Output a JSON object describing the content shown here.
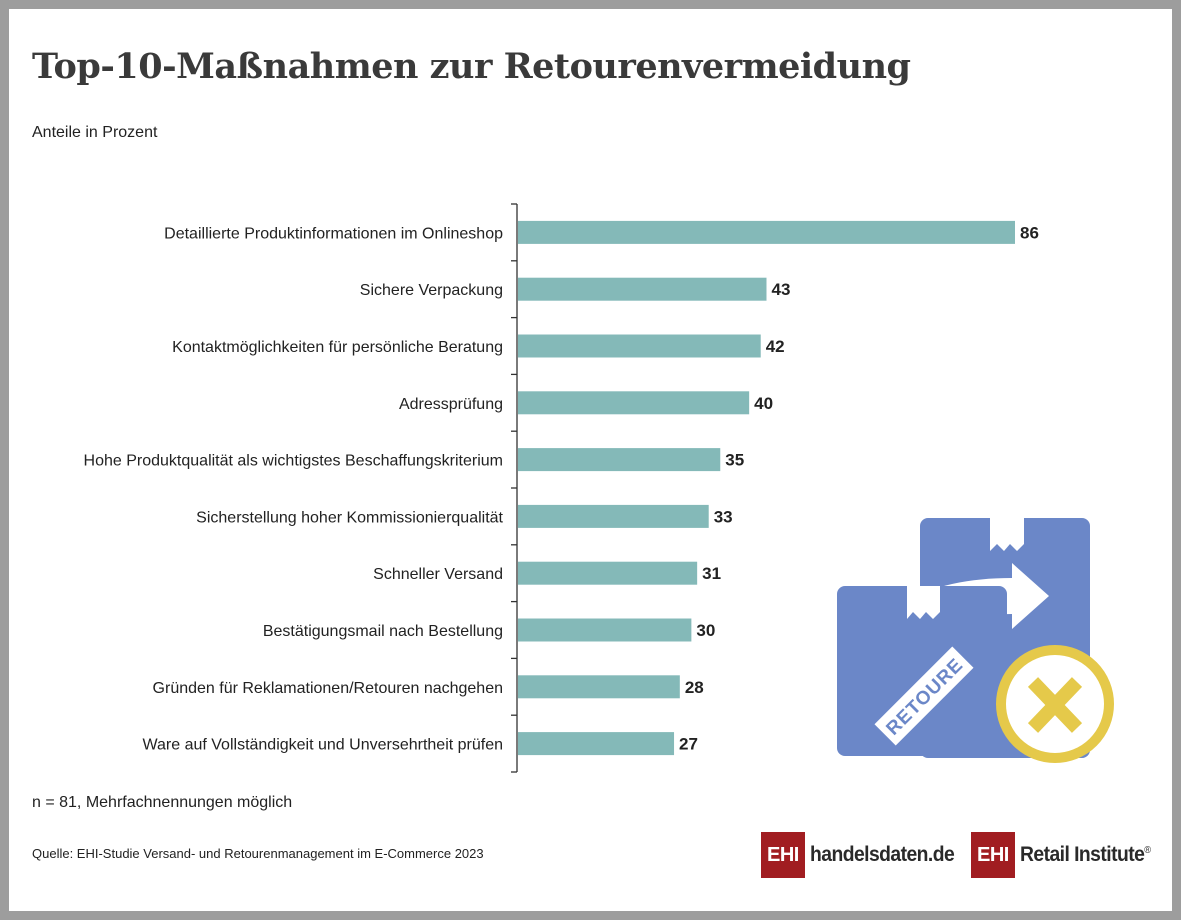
{
  "title": "Top-10-Maßnahmen zur Retourenvermeidung",
  "subtitle": "Anteile in Prozent",
  "note": "n = 81, Mehrfachnennungen möglich",
  "source": "Quelle: EHI-Studie Versand- und Retourenmanagement im E-Commerce 2023",
  "logos": {
    "left": {
      "box": "EHI",
      "text": "handelsdaten.de"
    },
    "right": {
      "box": "EHI",
      "text": "Retail Institute",
      "mark": "®"
    }
  },
  "illustration": {
    "box_label": "RETOURE",
    "icon": "cross-icon"
  },
  "colors": {
    "bar": "#84b9b8",
    "logo_red": "#a11d21",
    "box_blue": "#6b87c8",
    "ring_yellow": "#e5c94a"
  },
  "chart_data": {
    "type": "bar",
    "orientation": "horizontal",
    "categories": [
      "Detaillierte Produktinformationen im Onlineshop",
      "Sichere Verpackung",
      "Kontaktmöglichkeiten für persönliche Beratung",
      "Adressprüfung",
      "Hohe Produktqualität als wichtigstes Beschaffungskriterium",
      "Sicherstellung hoher Kommissionierqualität",
      "Schneller Versand",
      "Bestätigungsmail nach Bestellung",
      "Gründen für Reklamationen/Retouren nachgehen",
      "Ware auf Vollständigkeit und Unversehrtheit prüfen"
    ],
    "values": [
      86,
      43,
      42,
      40,
      35,
      33,
      31,
      30,
      28,
      27
    ],
    "title": "Top-10-Maßnahmen zur Retourenvermeidung",
    "xlabel": "",
    "ylabel": "",
    "xlim": [
      0,
      86
    ],
    "grid": false,
    "legend": "none"
  }
}
